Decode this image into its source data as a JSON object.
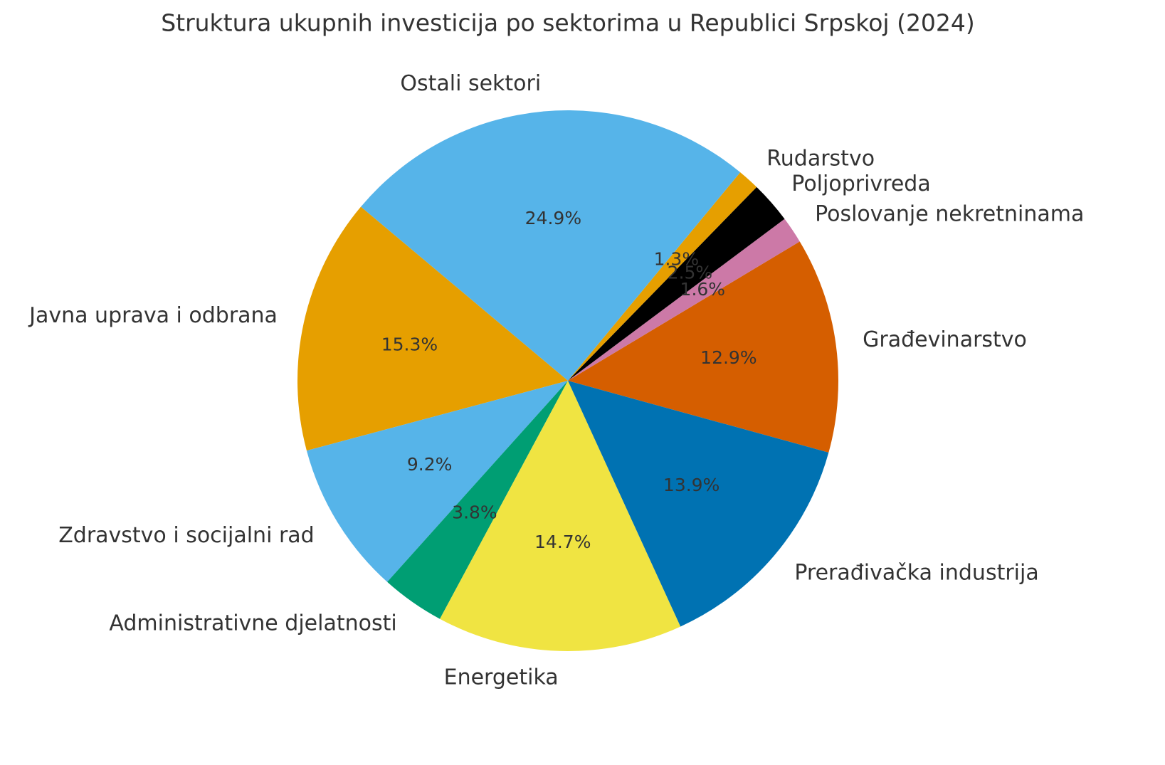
{
  "chart_data": {
    "type": "pie",
    "title": "Struktura ukupnih investicija po sektorima u Republici Srpskoj (2024)",
    "categories": [
      "Građevinarstvo",
      "Poslovanje nekretninama",
      "Poljoprivreda",
      "Rudarstvo",
      "Ostali sektori",
      "Javna uprava i odbrana",
      "Zdravstvo i socijalni rad",
      "Administrativne djelatnosti",
      "Energetika",
      "Prerađivačka industrija"
    ],
    "values": [
      12.9,
      1.6,
      2.5,
      1.3,
      24.9,
      15.3,
      9.2,
      3.8,
      14.7,
      13.9
    ],
    "value_labels": [
      "12.9%",
      "1.6%",
      "2.5%",
      "1.3%",
      "24.9%",
      "15.3%",
      "9.2%",
      "3.8%",
      "14.7%",
      "13.9%"
    ],
    "colors": [
      "#D55E00",
      "#CC79A7",
      "#000000",
      "#E69F00",
      "#56B4E9",
      "#E69F00",
      "#56B4E9",
      "#009E73",
      "#F0E442",
      "#0072B2"
    ]
  }
}
